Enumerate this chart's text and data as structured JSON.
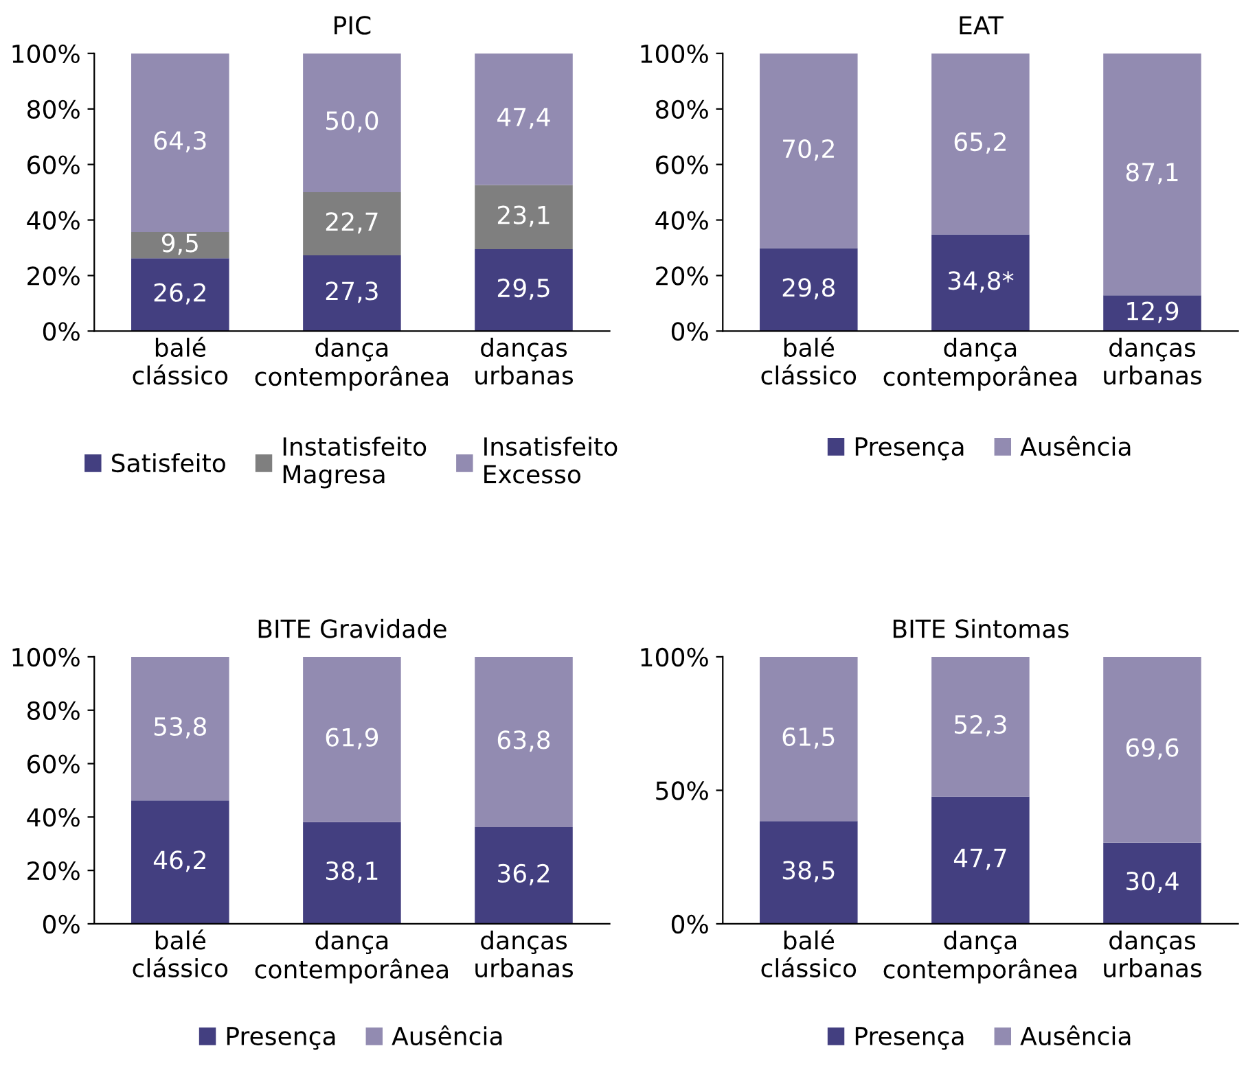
{
  "chart_data": [
    {
      "type": "bar",
      "title": "PIC",
      "stacked": true,
      "categories": [
        "balé\nclássico",
        "dança\ncontemporânea",
        "danças\nurbanas"
      ],
      "ylim": [
        0,
        100
      ],
      "yticks": [
        {
          "value": 0,
          "label": "0%"
        },
        {
          "value": 20,
          "label": "20%"
        },
        {
          "value": 40,
          "label": "40%"
        },
        {
          "value": 60,
          "label": "60%"
        },
        {
          "value": 80,
          "label": "80%"
        },
        {
          "value": 100,
          "label": "100%"
        }
      ],
      "legend": "bottom",
      "grid": false,
      "series": [
        {
          "name": "Satisfeito",
          "color": "#433f80",
          "values": [
            26.2,
            27.3,
            29.5
          ],
          "value_labels": [
            "26,2",
            "27,3",
            "29,5"
          ]
        },
        {
          "name": "Instatisfeito\nMagresa",
          "color": "#7f7f7f",
          "values": [
            9.5,
            22.7,
            23.1
          ],
          "value_labels": [
            "9,5",
            "22,7",
            "23,1"
          ]
        },
        {
          "name": "Insatisfeito\nExcesso",
          "color": "#928bb1",
          "values": [
            64.3,
            50.0,
            47.4
          ],
          "value_labels": [
            "64,3",
            "50,0",
            "47,4"
          ]
        }
      ]
    },
    {
      "type": "bar",
      "title": "EAT",
      "stacked": true,
      "categories": [
        "balé\nclássico",
        "dança\ncontemporânea",
        "danças\nurbanas"
      ],
      "ylim": [
        0,
        100
      ],
      "yticks": [
        {
          "value": 0,
          "label": "0%"
        },
        {
          "value": 20,
          "label": "20%"
        },
        {
          "value": 40,
          "label": "40%"
        },
        {
          "value": 60,
          "label": "60%"
        },
        {
          "value": 80,
          "label": "80%"
        },
        {
          "value": 100,
          "label": "100%"
        }
      ],
      "legend": "bottom",
      "grid": false,
      "series": [
        {
          "name": "Presença",
          "color": "#433f80",
          "values": [
            29.8,
            34.8,
            12.9
          ],
          "value_labels": [
            "29,8",
            "34,8*",
            "12,9"
          ]
        },
        {
          "name": "Ausência",
          "color": "#928bb1",
          "values": [
            70.2,
            65.2,
            87.1
          ],
          "value_labels": [
            "70,2",
            "65,2",
            "87,1"
          ]
        }
      ]
    },
    {
      "type": "bar",
      "title": "BITE Gravidade",
      "stacked": true,
      "categories": [
        "balé\nclássico",
        "dança\ncontemporânea",
        "danças\nurbanas"
      ],
      "ylim": [
        0,
        100
      ],
      "yticks": [
        {
          "value": 0,
          "label": "0%"
        },
        {
          "value": 20,
          "label": "20%"
        },
        {
          "value": 40,
          "label": "40%"
        },
        {
          "value": 60,
          "label": "60%"
        },
        {
          "value": 80,
          "label": "80%"
        },
        {
          "value": 100,
          "label": "100%"
        }
      ],
      "legend": "bottom",
      "grid": false,
      "series": [
        {
          "name": "Presença",
          "color": "#433f80",
          "values": [
            46.2,
            38.1,
            36.2
          ],
          "value_labels": [
            "46,2",
            "38,1",
            "36,2"
          ]
        },
        {
          "name": "Ausência",
          "color": "#928bb1",
          "values": [
            53.8,
            61.9,
            63.8
          ],
          "value_labels": [
            "53,8",
            "61,9",
            "63,8"
          ]
        }
      ]
    },
    {
      "type": "bar",
      "title": "BITE Sintomas",
      "stacked": true,
      "categories": [
        "balé\nclássico",
        "dança\ncontemporânea",
        "danças\nurbanas"
      ],
      "ylim": [
        0,
        100
      ],
      "yticks": [
        {
          "value": 0,
          "label": "0%"
        },
        {
          "value": 50,
          "label": "50%"
        },
        {
          "value": 100,
          "label": "100%"
        }
      ],
      "legend": "bottom",
      "grid": false,
      "series": [
        {
          "name": "Presença",
          "color": "#433f80",
          "values": [
            38.5,
            47.7,
            30.4
          ],
          "value_labels": [
            "38,5",
            "47,7",
            "30,4"
          ]
        },
        {
          "name": "Ausência",
          "color": "#928bb1",
          "values": [
            61.5,
            52.3,
            69.6
          ],
          "value_labels": [
            "61,5",
            "52,3",
            "69,6"
          ]
        }
      ]
    }
  ]
}
